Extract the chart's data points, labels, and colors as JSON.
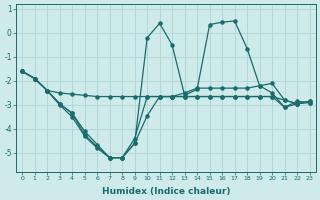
{
  "xlabel": "Humidex (Indice chaleur)",
  "x_values": [
    0,
    1,
    2,
    3,
    4,
    5,
    6,
    7,
    8,
    9,
    10,
    11,
    12,
    13,
    14,
    15,
    16,
    17,
    18,
    19,
    20,
    21,
    22,
    23
  ],
  "line_peak": [
    -1.6,
    -1.9,
    -2.4,
    -2.95,
    -3.35,
    -4.1,
    -4.65,
    -5.2,
    -5.2,
    -4.6,
    -0.2,
    0.4,
    -0.5,
    -2.6,
    -2.35,
    0.35,
    0.45,
    0.5,
    -0.65,
    -2.2,
    -2.5,
    -3.1,
    -2.85,
    -2.9
  ],
  "line_deep": [
    -1.6,
    -1.9,
    -2.4,
    -2.95,
    -3.35,
    -4.25,
    -4.75,
    -5.2,
    -5.2,
    -4.6,
    -3.45,
    -2.65,
    -2.65,
    -2.65,
    -2.65,
    -2.65,
    -2.65,
    -2.65,
    -2.65,
    -2.65,
    -2.65,
    -3.1,
    -2.95,
    -2.9
  ],
  "line_flat1": [
    -1.6,
    -1.9,
    -2.4,
    -2.5,
    -2.55,
    -2.6,
    -2.65,
    -2.65,
    -2.65,
    -2.65,
    -2.65,
    -2.65,
    -2.65,
    -2.65,
    -2.65,
    -2.65,
    -2.65,
    -2.65,
    -2.65,
    -2.65,
    -2.65,
    -2.8,
    -2.95,
    -2.85
  ],
  "line_flat2": [
    -1.6,
    -1.9,
    -2.4,
    -3.0,
    -3.5,
    -4.3,
    -4.8,
    -5.2,
    -5.2,
    -4.4,
    -2.65,
    -2.65,
    -2.65,
    -2.5,
    -2.3,
    -2.3,
    -2.3,
    -2.3,
    -2.3,
    -2.2,
    -2.1,
    -2.8,
    -2.95,
    -2.85
  ],
  "bg_color": "#ceeaea",
  "grid_color": "#aed4d4",
  "line_color": "#1a6b6b",
  "ylim": [
    -5.8,
    1.2
  ],
  "yticks": [
    1,
    0,
    -1,
    -2,
    -3,
    -4,
    -5
  ],
  "figsize": [
    3.2,
    2.0
  ],
  "dpi": 100
}
